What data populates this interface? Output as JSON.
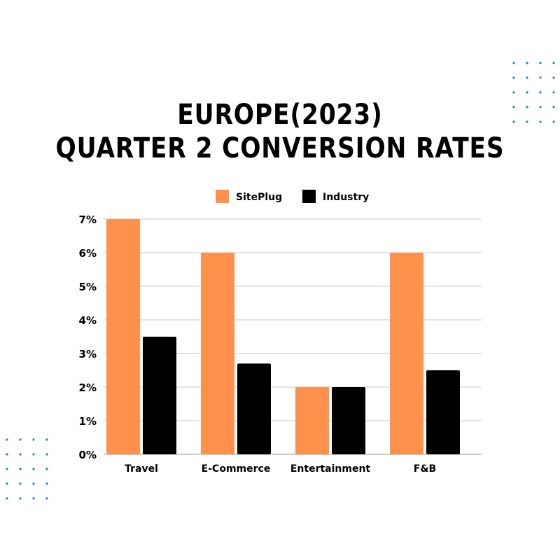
{
  "title_lines": [
    "EUROPE(2023)",
    "QUARTER 2 CONVERSION RATES"
  ],
  "colors": {
    "siteplug": "#FF914D",
    "industry": "#000000",
    "grid": "#c8c8c8",
    "dots": "#1f8a94"
  },
  "chart_data": {
    "type": "bar",
    "title": "EUROPE(2023) QUARTER 2 CONVERSION RATES",
    "categories": [
      "Travel",
      "E-Commerce",
      "Entertainment",
      "F&B"
    ],
    "series": [
      {
        "name": "SitePlug",
        "values": [
          7,
          6,
          2,
          6
        ]
      },
      {
        "name": "Industry",
        "values": [
          3.5,
          2.7,
          2.0,
          2.5
        ]
      }
    ],
    "yticks": [
      "0%",
      "1%",
      "2%",
      "3%",
      "4%",
      "5%",
      "6%",
      "7%"
    ],
    "ylim": [
      0,
      7
    ],
    "xlabel": "",
    "ylabel": "",
    "grid": true,
    "legend": "top-center"
  }
}
